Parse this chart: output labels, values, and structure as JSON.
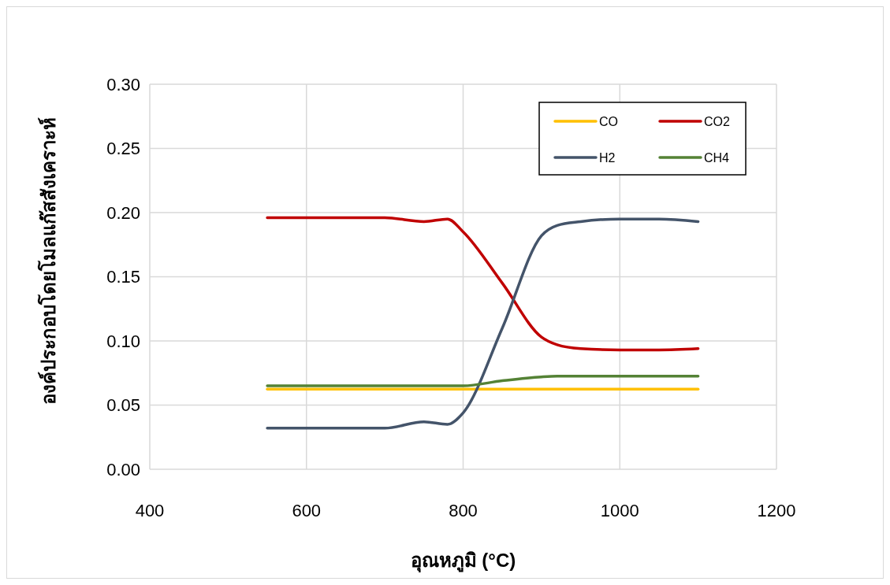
{
  "chart_data": {
    "type": "line",
    "xlabel": "อุณหภูมิ (°C)",
    "ylabel": "องค์ประกอบโดยโมลแก๊สสังเคราะห์",
    "xlim": [
      400,
      1200
    ],
    "xticks": [
      400,
      600,
      800,
      1000,
      1200
    ],
    "ylim": [
      0,
      0.3
    ],
    "yticks": [
      {
        "value": 0,
        "label": "0.00"
      },
      {
        "value": 0.05,
        "label": "0.05"
      },
      {
        "value": 0.1,
        "label": "0.10"
      },
      {
        "value": 0.15,
        "label": "0.15"
      },
      {
        "value": 0.2,
        "label": "0.20"
      },
      {
        "value": 0.25,
        "label": "0.25"
      },
      {
        "value": 0.3,
        "label": "0.30"
      }
    ],
    "x": [
      550,
      600,
      650,
      700,
      750,
      780,
      800,
      850,
      900,
      920,
      950,
      1000,
      1050,
      1100
    ],
    "grid": true,
    "legend": "top right",
    "marker": "none",
    "line_style": "solid",
    "series": [
      {
        "name": "CO",
        "color": "#ffc000",
        "values": [
          0.0625,
          0.0625,
          0.0625,
          0.0625,
          0.0625,
          0.0625,
          0.0625,
          0.0625,
          0.0625,
          0.0625,
          0.0625,
          0.0625,
          0.0625,
          0.0625
        ]
      },
      {
        "name": "CO2",
        "color": "#c00000",
        "values": [
          0.196,
          0.196,
          0.196,
          0.196,
          0.193,
          0.195,
          0.185,
          0.145,
          0.103,
          0.097,
          0.094,
          0.093,
          0.093,
          0.094
        ]
      },
      {
        "name": "H2",
        "color": "#44546a",
        "values": [
          0.032,
          0.032,
          0.032,
          0.032,
          0.037,
          0.035,
          0.044,
          0.11,
          0.182,
          0.19,
          0.193,
          0.195,
          0.195,
          0.193
        ]
      },
      {
        "name": "CH4",
        "color": "#548235",
        "values": [
          0.065,
          0.065,
          0.065,
          0.065,
          0.065,
          0.065,
          0.065,
          0.069,
          0.072,
          0.0725,
          0.0725,
          0.0725,
          0.0725,
          0.0725
        ]
      }
    ]
  }
}
